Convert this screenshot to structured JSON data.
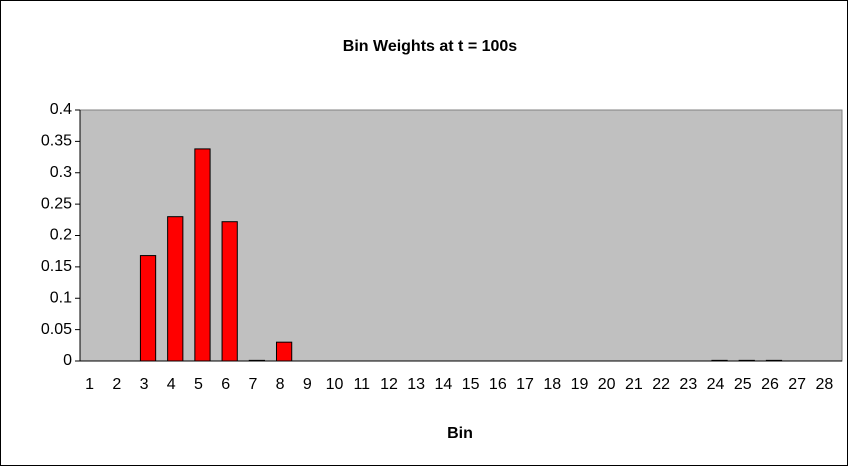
{
  "chart_data": {
    "type": "bar",
    "title": "Bin Weights at t = 100s",
    "x_label": "Bin",
    "categories": [
      "1",
      "2",
      "3",
      "4",
      "5",
      "6",
      "7",
      "8",
      "9",
      "10",
      "11",
      "12",
      "13",
      "14",
      "15",
      "16",
      "17",
      "18",
      "19",
      "20",
      "21",
      "22",
      "23",
      "24",
      "25",
      "26",
      "27",
      "28"
    ],
    "values": [
      0,
      0,
      0.168,
      0.23,
      0.338,
      0.222,
      0.001,
      0.03,
      0,
      0,
      0,
      0,
      0,
      0,
      0,
      0,
      0,
      0,
      0,
      0,
      0,
      0,
      0,
      0.001,
      0.001,
      0.001,
      0,
      0
    ],
    "color": "#ff0000",
    "plot_background": "#c0c0c0",
    "ylim": [
      0,
      0.4
    ],
    "yticks": [
      0,
      0.05,
      0.1,
      0.15,
      0.2,
      0.25,
      0.3,
      0.35,
      0.4
    ],
    "grid": false
  }
}
